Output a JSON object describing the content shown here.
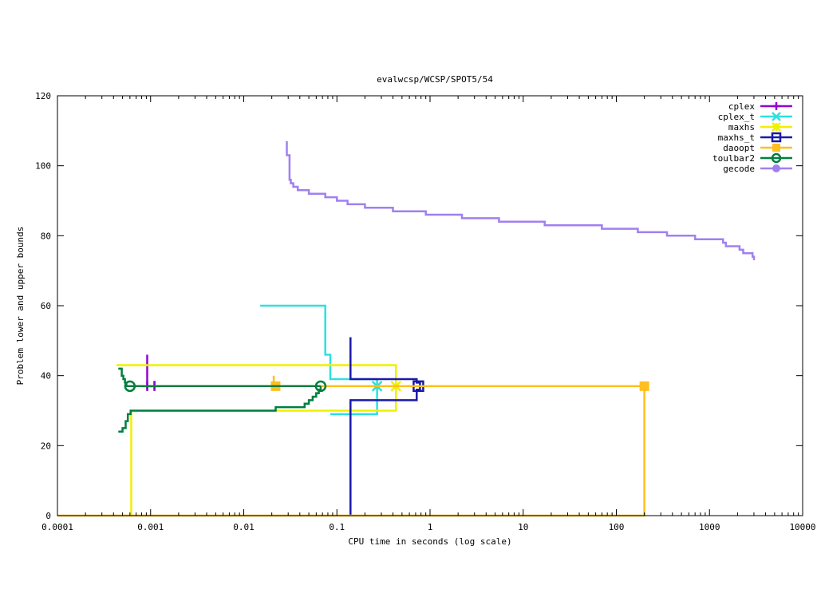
{
  "chart_data": {
    "type": "line",
    "title": "evalwcsp/WCSP/SPOT5/54",
    "xlabel": "CPU time in seconds (log scale)",
    "ylabel": "Problem lower and upper bounds",
    "x_scale": "log",
    "xlim": [
      0.0001,
      10000
    ],
    "ylim": [
      0,
      120
    ],
    "x_ticks": [
      0.0001,
      0.001,
      0.01,
      0.1,
      1,
      10,
      100,
      1000,
      10000
    ],
    "x_tick_labels": [
      "0.0001",
      "0.001",
      "0.01",
      "0.1",
      "1",
      "10",
      "100",
      "1000",
      "10000"
    ],
    "y_ticks": [
      0,
      20,
      40,
      60,
      80,
      100,
      120
    ],
    "y_tick_labels": [
      "0",
      "20",
      "40",
      "60",
      "80",
      "100",
      "120"
    ],
    "grid": false,
    "legend_position": "top-right",
    "series": [
      {
        "name": "cplex",
        "color": "#9400d3",
        "marker": "plus",
        "segments": [
          [
            [
              0.00092,
              46
            ],
            [
              0.00092,
              36
            ]
          ],
          [
            [
              0.0011,
              38.5
            ],
            [
              0.0011,
              36
            ]
          ]
        ],
        "markers": [
          [
            0.00092,
            37
          ],
          [
            0.0011,
            37
          ]
        ]
      },
      {
        "name": "cplex_t",
        "color": "#2ee0e0",
        "marker": "cross",
        "segments": [
          [
            [
              0.015,
              60
            ],
            [
              0.075,
              60
            ],
            [
              0.075,
              46
            ],
            [
              0.085,
              46
            ],
            [
              0.085,
              39
            ],
            [
              0.27,
              39
            ],
            [
              0.27,
              37
            ]
          ],
          [
            [
              0.085,
              29
            ],
            [
              0.27,
              29
            ],
            [
              0.27,
              37
            ]
          ]
        ],
        "markers": [
          [
            0.27,
            37
          ]
        ]
      },
      {
        "name": "maxhs",
        "color": "#f0f000",
        "marker": "star",
        "segments": [
          [
            [
              0.00043,
              43
            ],
            [
              0.43,
              43
            ],
            [
              0.43,
              37
            ]
          ],
          [
            [
              0.00062,
              0
            ],
            [
              0.00062,
              30
            ],
            [
              0.022,
              30
            ],
            [
              0.022,
              30
            ],
            [
              0.43,
              30
            ],
            [
              0.43,
              37
            ]
          ]
        ],
        "markers": [
          [
            0.43,
            37
          ]
        ]
      },
      {
        "name": "maxhs_t",
        "color": "#1a1aa8",
        "marker": "box",
        "segments": [
          [
            [
              0.14,
              51
            ],
            [
              0.14,
              39
            ],
            [
              0.72,
              39
            ],
            [
              0.72,
              38
            ],
            [
              0.78,
              38
            ],
            [
              0.78,
              37
            ]
          ],
          [
            [
              0.14,
              0
            ],
            [
              0.14,
              33
            ],
            [
              0.72,
              33
            ],
            [
              0.72,
              36
            ],
            [
              0.78,
              36
            ],
            [
              0.78,
              37
            ]
          ]
        ],
        "markers": [
          [
            0.75,
            37
          ]
        ]
      },
      {
        "name": "daoopt",
        "color": "#ffbf1f",
        "marker": "filled-box",
        "segments": [
          [
            [
              0.0001,
              0
            ],
            [
              200,
              0
            ],
            [
              200,
              37
            ],
            [
              0.066,
              37
            ]
          ],
          [
            [
              0.021,
              40
            ],
            [
              0.021,
              37
            ]
          ]
        ],
        "markers": [
          [
            0.022,
            37
          ],
          [
            200,
            37
          ]
        ]
      },
      {
        "name": "toulbar2",
        "color": "#007f3f",
        "marker": "circle",
        "segments": [
          [
            [
              0.00045,
              42
            ],
            [
              0.00049,
              42
            ],
            [
              0.00049,
              40
            ],
            [
              0.00051,
              40
            ],
            [
              0.00051,
              39
            ],
            [
              0.00053,
              39
            ],
            [
              0.00053,
              38
            ],
            [
              0.00055,
              38
            ],
            [
              0.00055,
              37
            ],
            [
              0.067,
              37
            ]
          ],
          [
            [
              0.00045,
              24
            ],
            [
              0.0005,
              24
            ],
            [
              0.0005,
              25
            ],
            [
              0.00054,
              25
            ],
            [
              0.00054,
              27
            ],
            [
              0.00057,
              27
            ],
            [
              0.00057,
              29
            ],
            [
              0.00061,
              29
            ],
            [
              0.00061,
              30
            ],
            [
              0.022,
              30
            ],
            [
              0.022,
              31
            ],
            [
              0.045,
              31
            ],
            [
              0.045,
              32
            ],
            [
              0.05,
              32
            ],
            [
              0.05,
              33
            ],
            [
              0.055,
              33
            ],
            [
              0.055,
              34
            ],
            [
              0.06,
              34
            ],
            [
              0.06,
              35
            ],
            [
              0.064,
              35
            ],
            [
              0.064,
              36
            ],
            [
              0.067,
              36
            ],
            [
              0.067,
              37
            ]
          ]
        ],
        "markers": [
          [
            0.0006,
            37
          ],
          [
            0.067,
            37
          ]
        ]
      },
      {
        "name": "gecode",
        "color": "#a080f0",
        "marker": "filled-circle",
        "segments": [
          [
            [
              0.029,
              107
            ],
            [
              0.029,
              103
            ],
            [
              0.031,
              103
            ],
            [
              0.031,
              96
            ],
            [
              0.032,
              96
            ],
            [
              0.032,
              95
            ],
            [
              0.034,
              95
            ],
            [
              0.034,
              94
            ],
            [
              0.038,
              94
            ],
            [
              0.038,
              93
            ],
            [
              0.05,
              93
            ],
            [
              0.05,
              92
            ],
            [
              0.075,
              92
            ],
            [
              0.075,
              91
            ],
            [
              0.1,
              91
            ],
            [
              0.1,
              90
            ],
            [
              0.13,
              90
            ],
            [
              0.13,
              89
            ],
            [
              0.2,
              89
            ],
            [
              0.2,
              88
            ],
            [
              0.4,
              88
            ],
            [
              0.4,
              87
            ],
            [
              0.9,
              87
            ],
            [
              0.9,
              86
            ],
            [
              2.2,
              86
            ],
            [
              2.2,
              85
            ],
            [
              5.5,
              85
            ],
            [
              5.5,
              84
            ],
            [
              17,
              84
            ],
            [
              17,
              83
            ],
            [
              70,
              83
            ],
            [
              70,
              82
            ],
            [
              170,
              82
            ],
            [
              170,
              81
            ],
            [
              350,
              81
            ],
            [
              350,
              80
            ],
            [
              700,
              80
            ],
            [
              700,
              79
            ],
            [
              1400,
              79
            ],
            [
              1400,
              78
            ],
            [
              1500,
              78
            ],
            [
              1500,
              77
            ],
            [
              2100,
              77
            ],
            [
              2100,
              76
            ],
            [
              2300,
              76
            ],
            [
              2300,
              75
            ],
            [
              2900,
              75
            ],
            [
              2900,
              74
            ],
            [
              3000,
              74
            ],
            [
              3000,
              73
            ]
          ]
        ],
        "markers": []
      }
    ]
  }
}
